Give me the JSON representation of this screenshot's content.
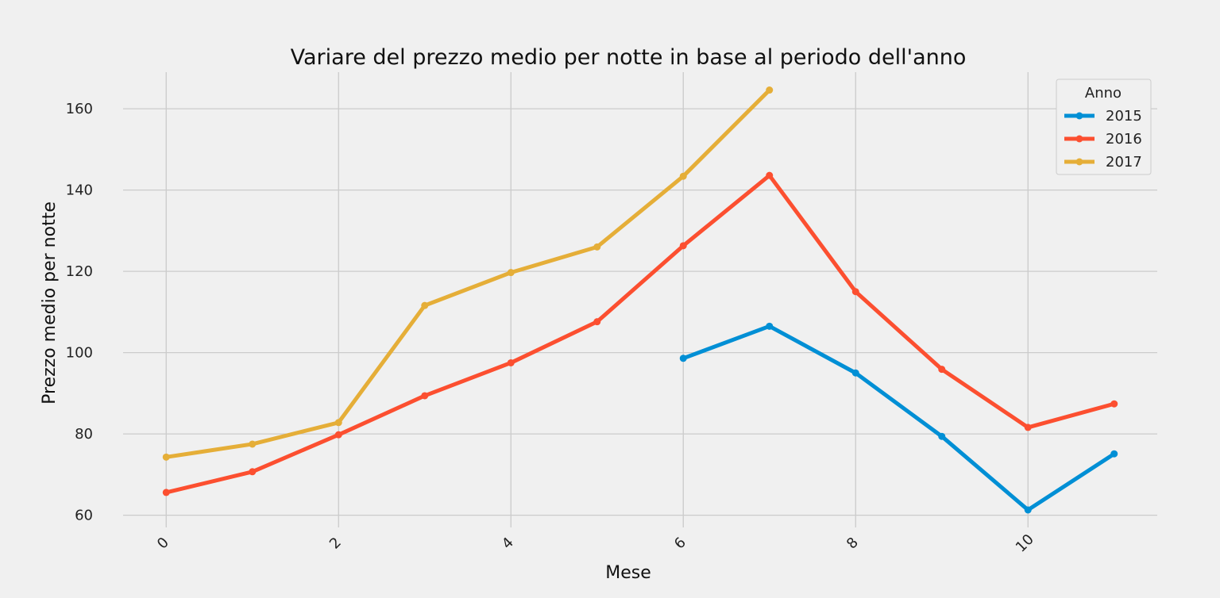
{
  "chart_data": {
    "type": "line",
    "title": "Variare del prezzo medio per notte in base al periodo dell'anno",
    "xlabel": "Mese",
    "ylabel": "Prezzo medio per notte",
    "xlim": [
      -0.5,
      11.5
    ],
    "ylim": [
      57,
      169
    ],
    "xticks": [
      0,
      2,
      4,
      6,
      8,
      10
    ],
    "yticks": [
      60,
      80,
      100,
      120,
      140,
      160
    ],
    "grid": true,
    "legend": {
      "title": "Anno",
      "position": "top-right"
    },
    "series": [
      {
        "name": "2015",
        "color": "#008fd5",
        "x": [
          6,
          7,
          8,
          9,
          10,
          11
        ],
        "y": [
          98.6,
          106.5,
          95.0,
          79.4,
          61.3,
          75.1
        ]
      },
      {
        "name": "2016",
        "color": "#fc4f30",
        "x": [
          0,
          1,
          2,
          3,
          4,
          5,
          6,
          7,
          8,
          9,
          10,
          11
        ],
        "y": [
          65.6,
          70.7,
          79.8,
          89.4,
          97.5,
          107.6,
          126.3,
          143.6,
          115.0,
          95.9,
          81.6,
          87.4
        ]
      },
      {
        "name": "2017",
        "color": "#e5ae38",
        "x": [
          0,
          1,
          2,
          3,
          4,
          5,
          6,
          7
        ],
        "y": [
          74.3,
          77.5,
          82.8,
          111.6,
          119.7,
          126.0,
          143.4,
          164.6
        ]
      }
    ]
  }
}
